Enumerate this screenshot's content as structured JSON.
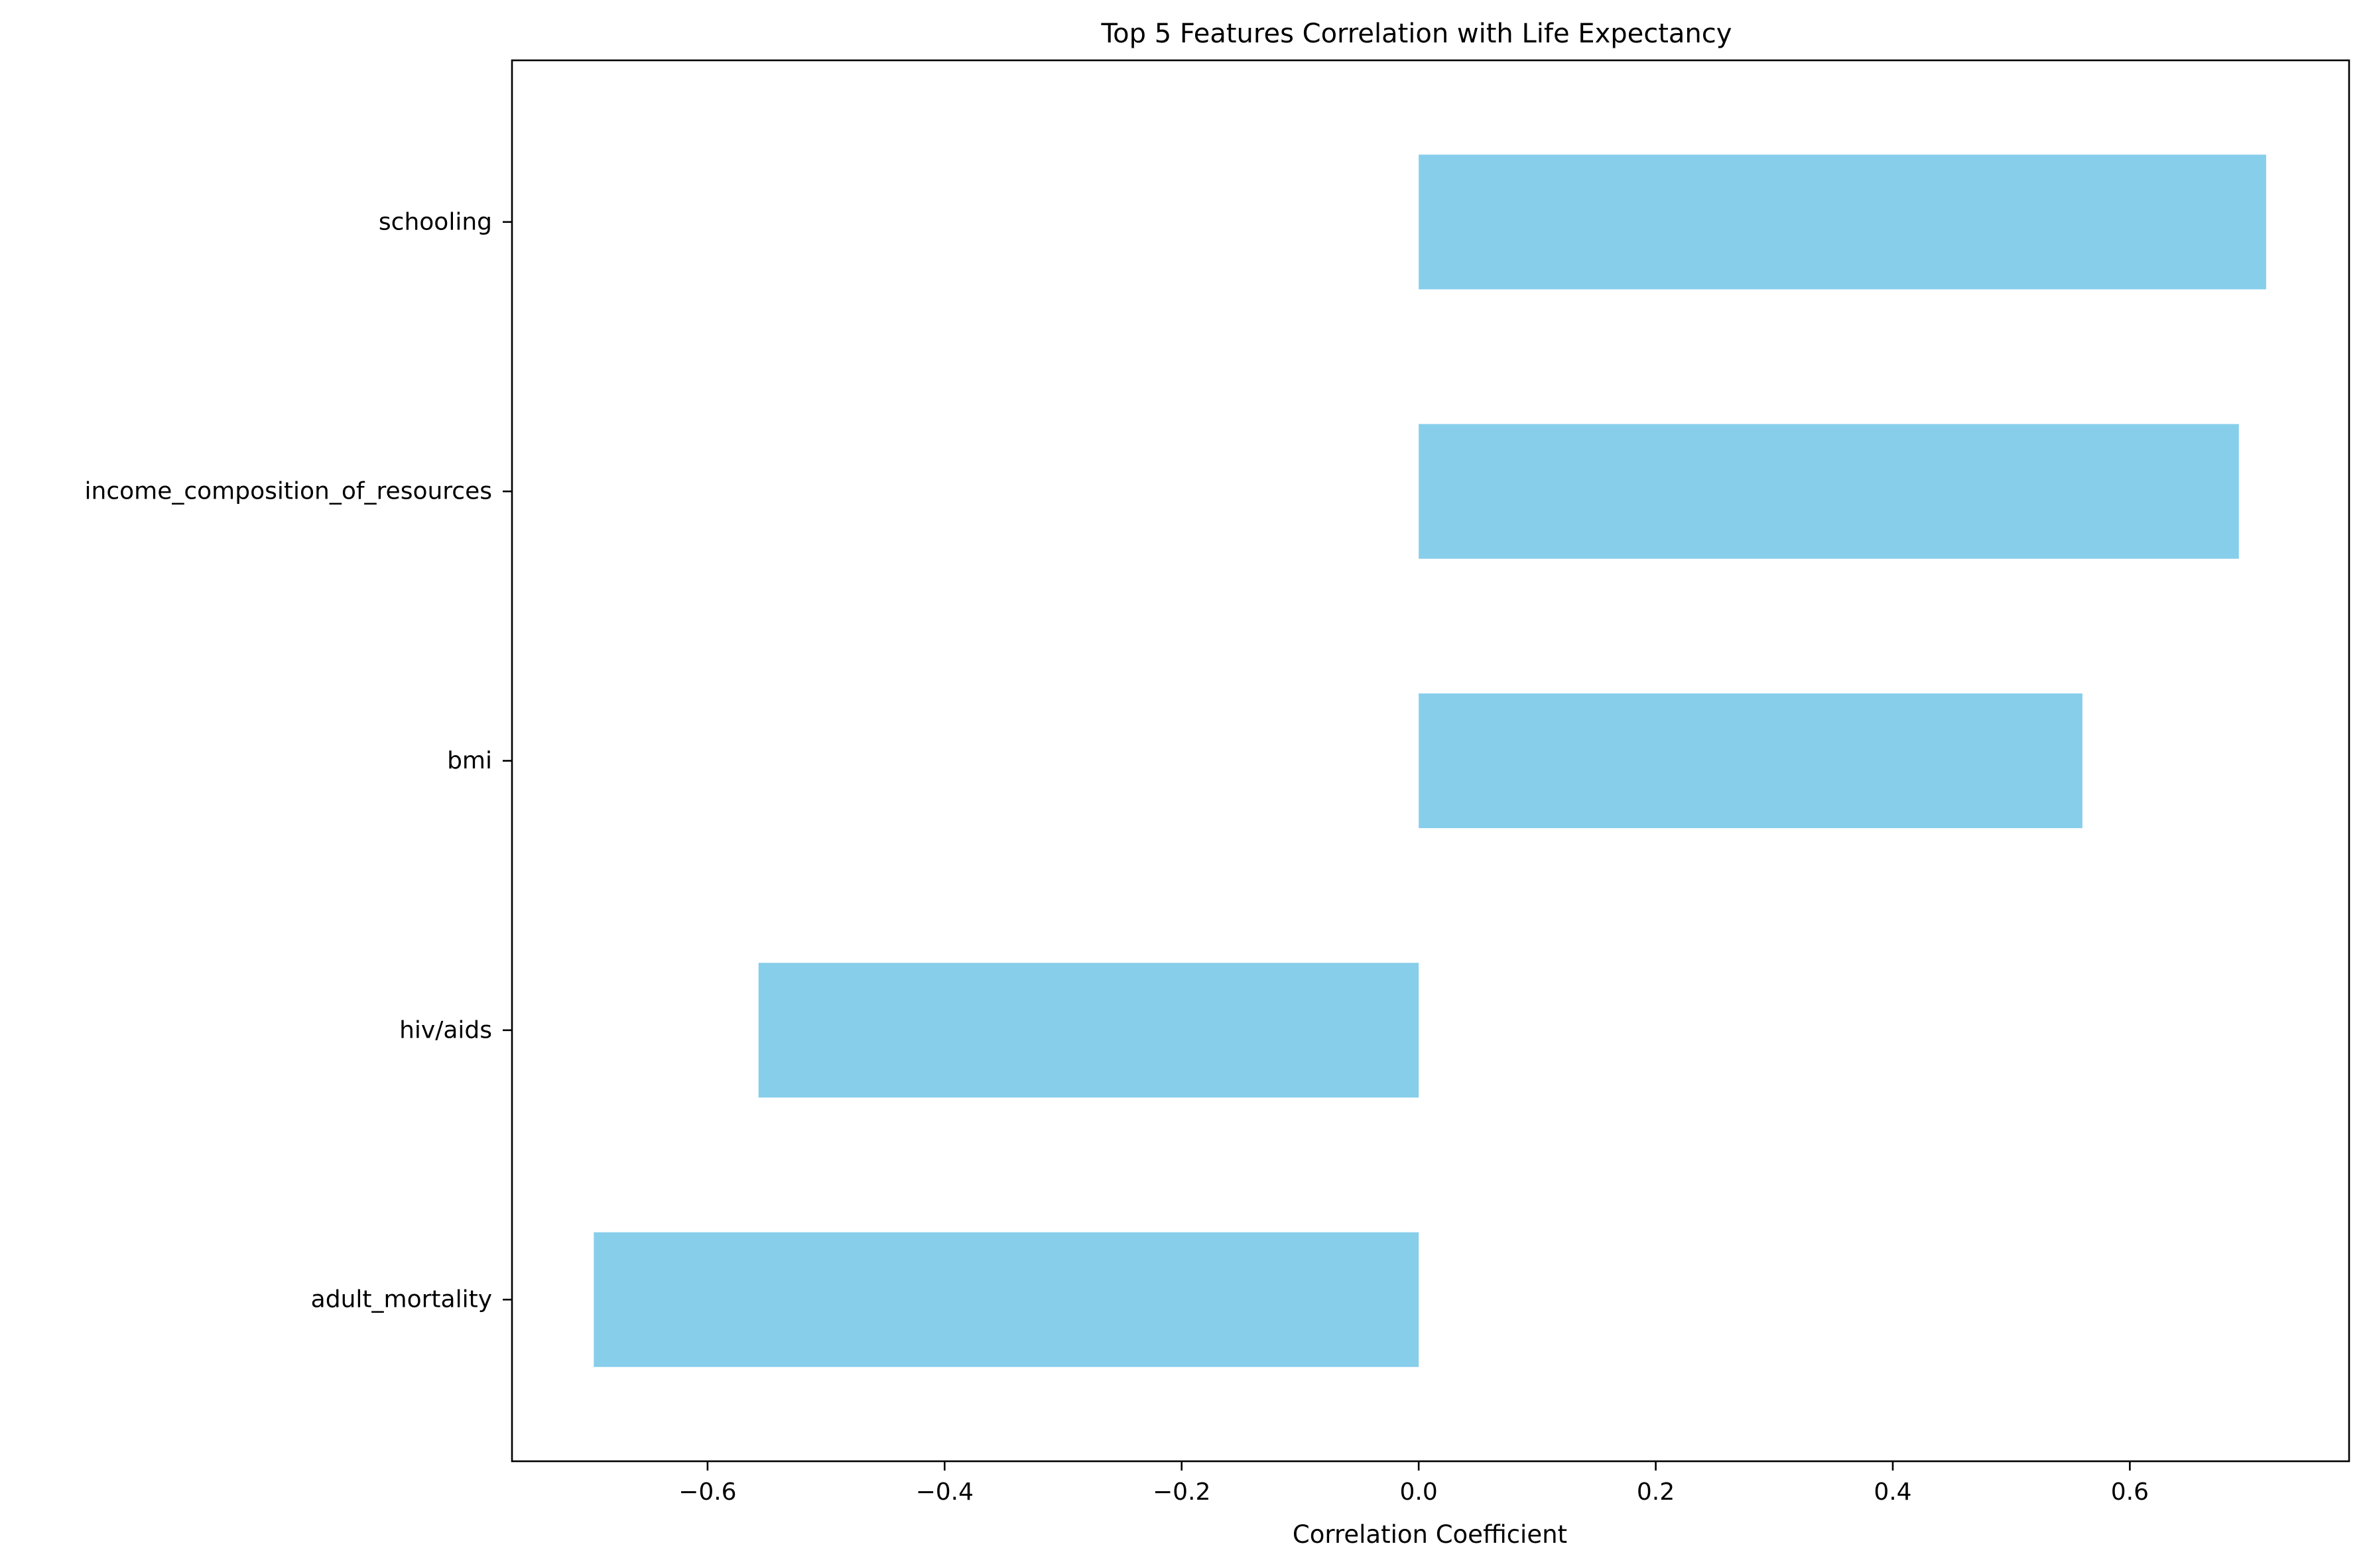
{
  "chart_data": {
    "type": "bar",
    "orientation": "horizontal",
    "title": "Top 5 Features Correlation with Life Expectancy",
    "xlabel": "Correlation Coefficient",
    "ylabel": "",
    "categories": [
      "adult_mortality",
      "hiv/aids",
      "bmi",
      "income_composition_of_resources",
      "schooling"
    ],
    "values": [
      -0.696,
      -0.557,
      0.56,
      0.692,
      0.715
    ],
    "xlim": [
      -0.765,
      0.785
    ],
    "xticks": [
      -0.6,
      -0.4,
      -0.2,
      0.0,
      0.2,
      0.4,
      0.6
    ],
    "xtick_labels": [
      "−0.6",
      "−0.4",
      "−0.2",
      "0.0",
      "0.2",
      "0.4",
      "0.6"
    ],
    "bar_color": "#87CEEB",
    "grid": false,
    "legend": "none"
  }
}
